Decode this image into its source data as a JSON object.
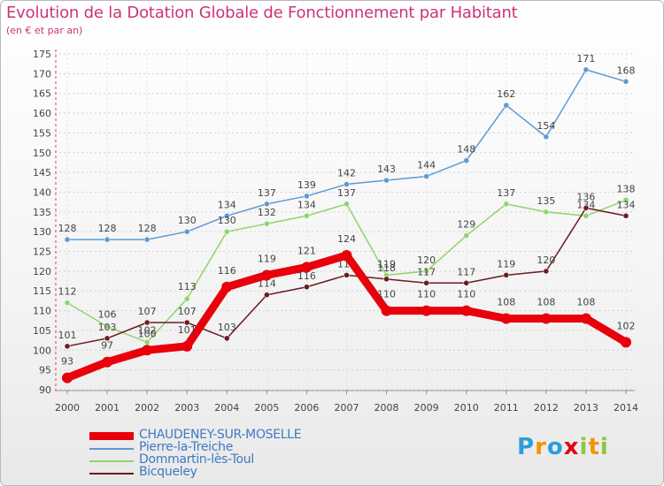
{
  "title": "Evolution de la Dotation Globale de Fonctionnement par Habitant",
  "subtitle": "(en € et par an)",
  "logo": {
    "letters": [
      "P",
      "r",
      "o",
      "x",
      "i",
      "t",
      "i"
    ],
    "colors": [
      "#2a9fd8",
      "#f29400",
      "#2a9fd8",
      "#e2001a",
      "#8dc63f",
      "#f29400",
      "#8dc63f"
    ]
  },
  "chart_data": {
    "type": "line",
    "x": [
      "2000",
      "2001",
      "2002",
      "2003",
      "2004",
      "2005",
      "2006",
      "2007",
      "2008",
      "2009",
      "2010",
      "2011",
      "2012",
      "2013",
      "2014"
    ],
    "ylim": [
      90,
      175
    ],
    "yticks": [
      90,
      95,
      100,
      105,
      110,
      115,
      120,
      125,
      130,
      135,
      140,
      145,
      150,
      155,
      160,
      165,
      170,
      175
    ],
    "grid": true,
    "legend_position": "bottom-left",
    "series": [
      {
        "name": "Pierre-la-Treiche",
        "color": "#5b9bd5",
        "values": [
          128,
          128,
          128,
          130,
          134,
          137,
          139,
          142,
          143,
          144,
          148,
          162,
          154,
          171,
          168
        ]
      },
      {
        "name": "Dommartin-lès-Toul",
        "color": "#8fd46a",
        "values": [
          112,
          106,
          102,
          113,
          130,
          132,
          134,
          137,
          119,
          120,
          129,
          137,
          135,
          134,
          138
        ]
      },
      {
        "name": "Bicqueley",
        "color": "#6b1a20",
        "values": [
          101,
          103,
          107,
          107,
          103,
          114,
          116,
          119,
          118,
          117,
          117,
          119,
          120,
          136,
          134
        ]
      },
      {
        "name": "CHAUDENEY-SUR-MOSELLE",
        "color": "#e8000b",
        "values": [
          93,
          97,
          100,
          101,
          116,
          119,
          121,
          124,
          110,
          110,
          110,
          108,
          108,
          108,
          102
        ]
      }
    ]
  }
}
